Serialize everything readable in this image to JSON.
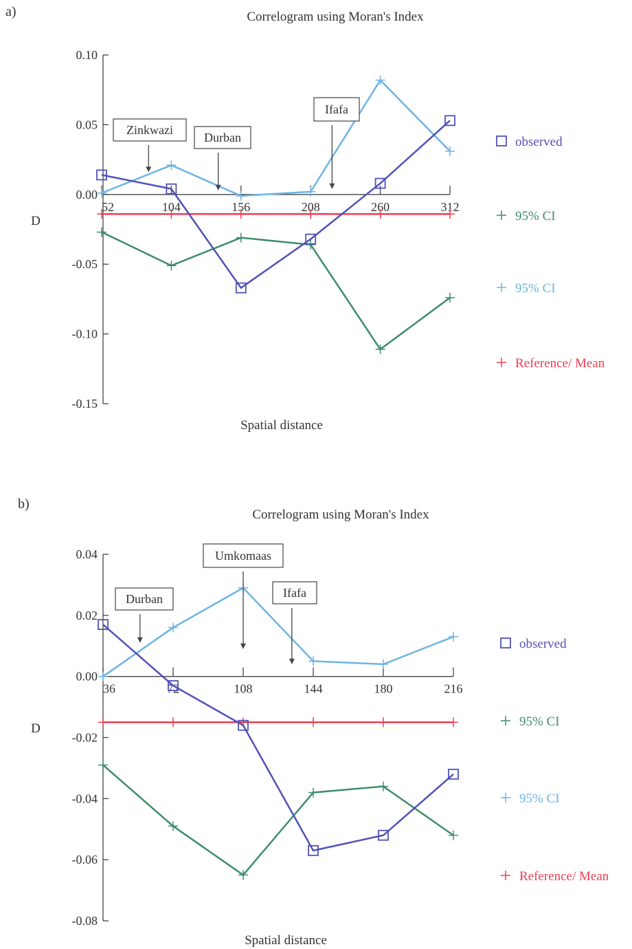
{
  "colors": {
    "observed": "#5050b8",
    "ci_lower": "#3d8c6a",
    "ci_upper": "#6cb4e4",
    "reference": "#f03c50",
    "axis": "#444444",
    "text": "#333333"
  },
  "chart_data": [
    {
      "panel_label": "a)",
      "type": "line",
      "title": "Correlogram using Moran's Index",
      "xlabel": "Spatial distance",
      "ylabel": "D",
      "x": [
        52,
        104,
        156,
        208,
        260,
        312
      ],
      "x_tick_labels": [
        "52",
        "104",
        "156",
        "208",
        "260",
        "312"
      ],
      "ylim": [
        -0.15,
        0.1
      ],
      "y_ticks": [
        0.1,
        0.05,
        0.0,
        -0.05,
        -0.1,
        -0.15
      ],
      "y_tick_labels": [
        "0.10",
        "0.05",
        "0.00",
        "-0.05",
        "-0.10",
        "-0.15"
      ],
      "series": [
        {
          "name": "observed",
          "marker": "square",
          "values": [
            0.014,
            0.004,
            -0.067,
            -0.032,
            0.008,
            0.053
          ]
        },
        {
          "name": "95% CI",
          "marker": "plus",
          "values": [
            -0.027,
            -0.051,
            -0.031,
            -0.036,
            -0.111,
            -0.074
          ]
        },
        {
          "name": "95% CI",
          "marker": "plus",
          "values": [
            0.001,
            0.021,
            -0.001,
            0.002,
            0.082,
            0.031
          ]
        },
        {
          "name": "Reference/ Mean",
          "marker": "plus",
          "values": [
            -0.014,
            -0.014,
            -0.014,
            -0.014,
            -0.014,
            -0.014
          ]
        }
      ],
      "annotations": [
        {
          "text": "Zinkwazi",
          "x": 87,
          "y": 0.016
        },
        {
          "text": "Durban",
          "x": 139,
          "y": 0.003
        },
        {
          "text": "Ifafa",
          "x": 224,
          "y": 0.004
        }
      ],
      "legend": [
        "observed",
        "95% CI",
        "95% CI",
        "Reference/ Mean"
      ]
    },
    {
      "panel_label": "b)",
      "type": "line",
      "title": "Correlogram using Moran's Index",
      "xlabel": "Spatial distance",
      "ylabel": "D",
      "x": [
        36,
        72,
        108,
        144,
        180,
        216
      ],
      "x_tick_labels": [
        "36",
        "72",
        "108",
        "144",
        "180",
        "216"
      ],
      "ylim": [
        -0.08,
        0.04
      ],
      "y_ticks": [
        0.04,
        0.02,
        0.0,
        -0.02,
        -0.04,
        -0.06,
        -0.08
      ],
      "y_tick_labels": [
        "0.04",
        "0.02",
        "0.00",
        "-0.02",
        "-0.04",
        "-0.06",
        "-0.08"
      ],
      "series": [
        {
          "name": "observed",
          "marker": "square",
          "values": [
            0.017,
            -0.003,
            -0.016,
            -0.057,
            -0.052,
            -0.032
          ]
        },
        {
          "name": "95% CI",
          "marker": "plus",
          "values": [
            -0.029,
            -0.049,
            -0.065,
            -0.038,
            -0.036,
            -0.052
          ]
        },
        {
          "name": "95% CI",
          "marker": "plus",
          "values": [
            0.0,
            0.016,
            0.029,
            0.005,
            0.004,
            0.013
          ]
        },
        {
          "name": "Reference/ Mean",
          "marker": "plus",
          "values": [
            -0.015,
            -0.015,
            -0.015,
            -0.015,
            -0.015,
            -0.015
          ]
        }
      ],
      "annotations": [
        {
          "text": "Durban",
          "x": 55,
          "y": 0.011
        },
        {
          "text": "Umkomaas",
          "x": 108,
          "y": 0.009
        },
        {
          "text": "Ifafa",
          "x": 133,
          "y": 0.004
        }
      ],
      "legend": [
        "observed",
        "95% CI",
        "95% CI",
        "Reference/ Mean"
      ]
    }
  ]
}
